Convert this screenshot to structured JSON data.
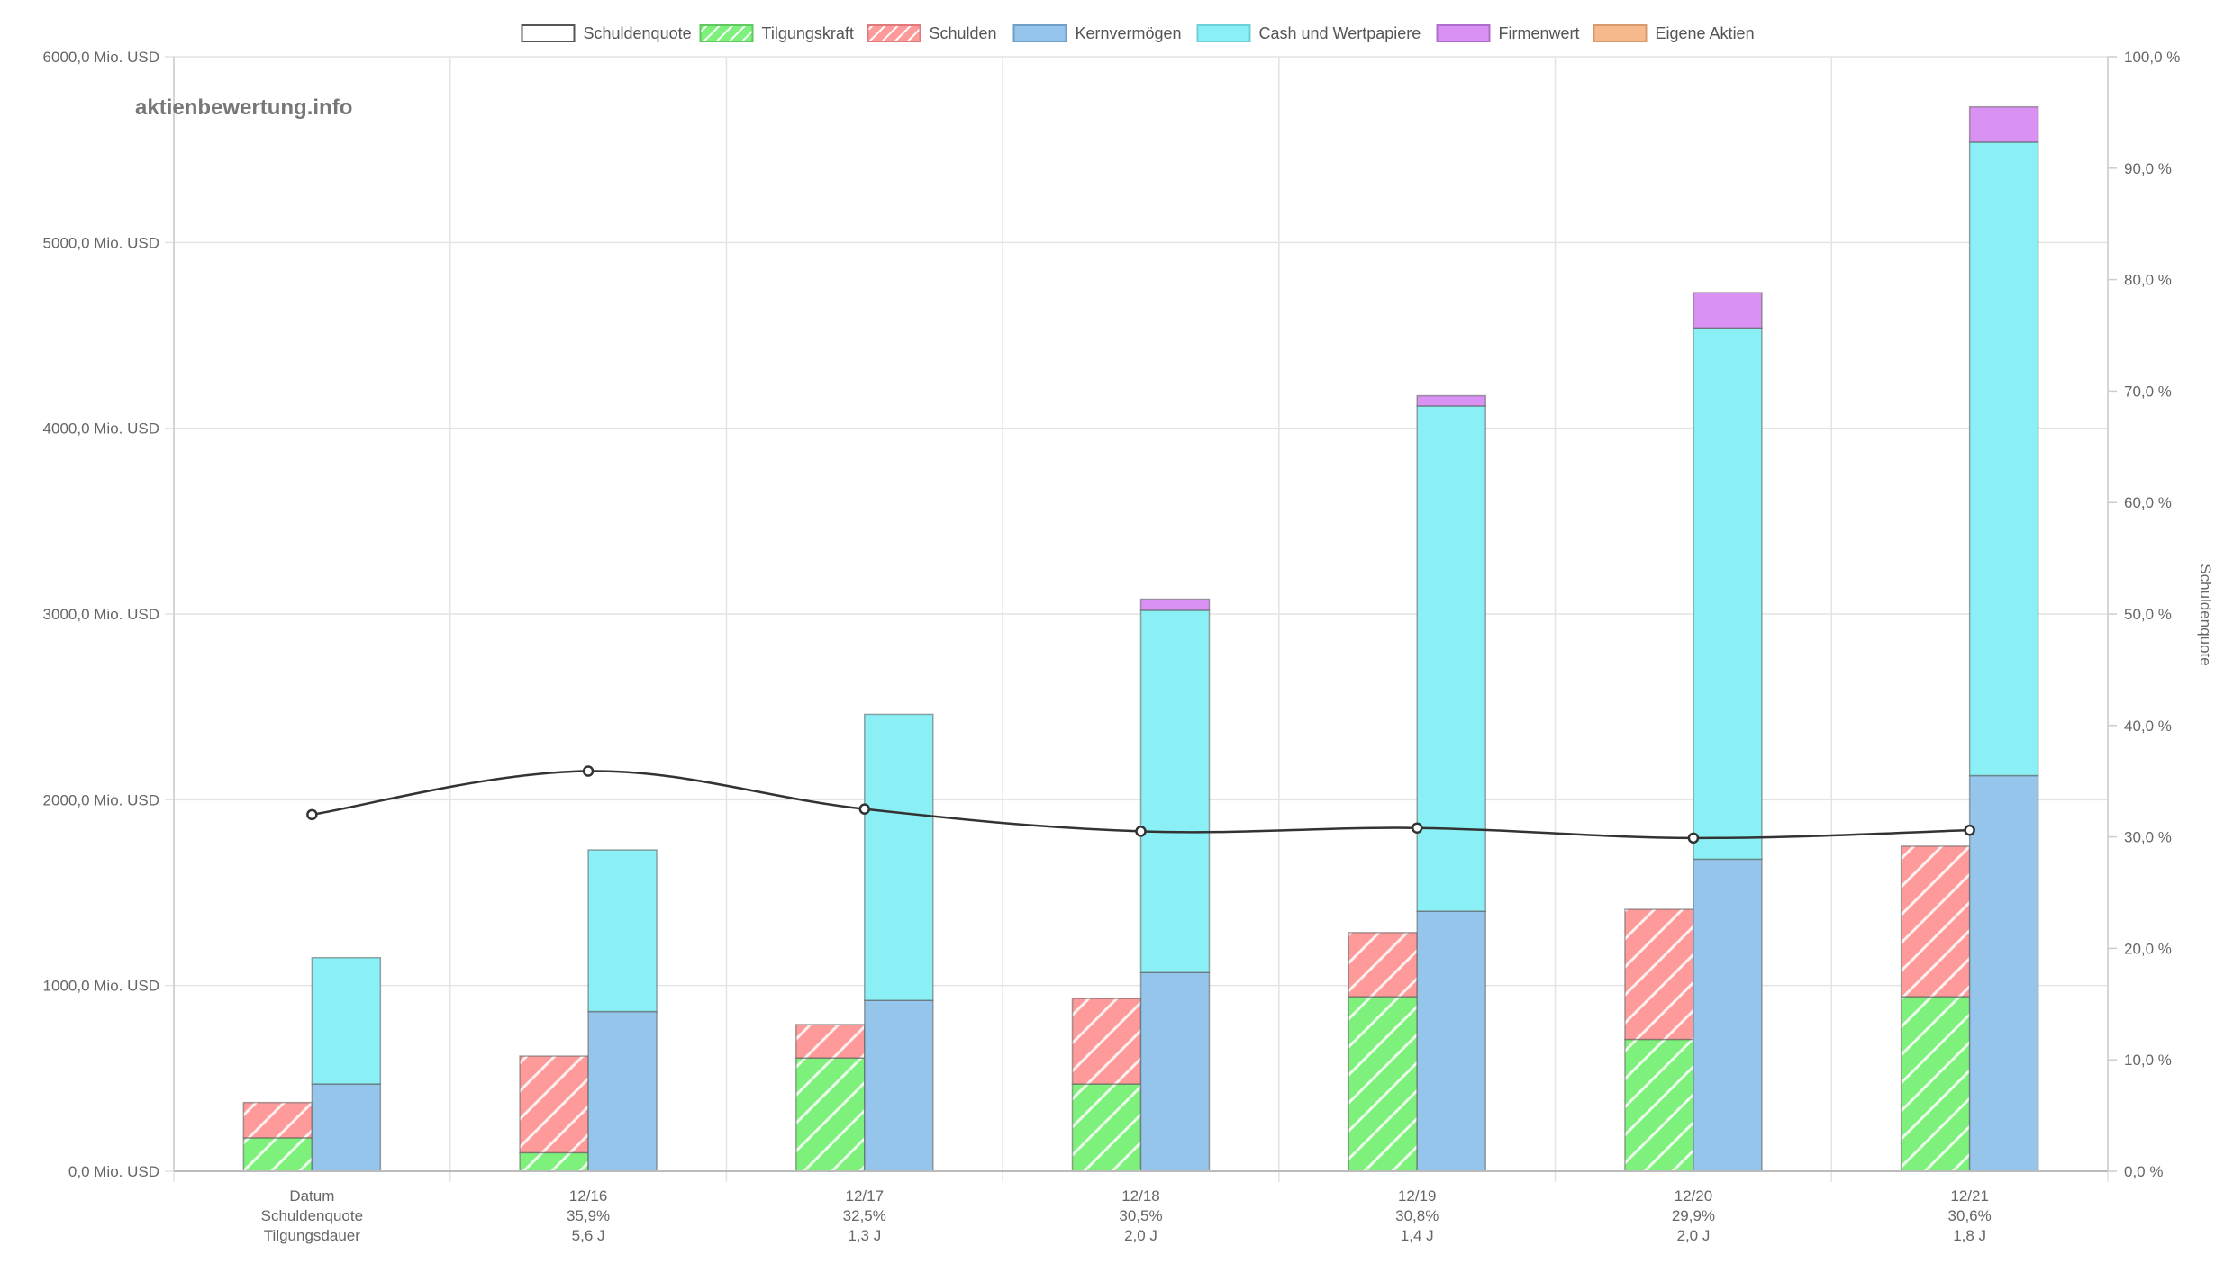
{
  "watermark": "aktienbewertung.info",
  "chart_data": {
    "type": "bar",
    "stacked": true,
    "legend_position": "top-center",
    "grid": true,
    "legend": [
      {
        "label": "Schuldenquote",
        "color": "#ffffff",
        "border": "#555555",
        "pattern": false
      },
      {
        "label": "Tilgungskraft",
        "color": "#7ef07c",
        "border": "#5fc95d",
        "pattern": true
      },
      {
        "label": "Schulden",
        "color": "#ff9a9a",
        "border": "#e07a7a",
        "pattern": true
      },
      {
        "label": "Kernvermögen",
        "color": "#95c5ea",
        "border": "#6f9fc6",
        "pattern": false
      },
      {
        "label": "Cash und Wertpapiere",
        "color": "#8af0f5",
        "border": "#6fcfd6",
        "pattern": false
      },
      {
        "label": "Firmenwert",
        "color": "#d992f3",
        "border": "#b06ecc",
        "pattern": false
      },
      {
        "label": "Eigene Aktien",
        "color": "#f6b98c",
        "border": "#d89a6e",
        "pattern": false
      }
    ],
    "categories": [
      "Datum",
      "12/16",
      "12/17",
      "12/18",
      "12/19",
      "12/20",
      "12/21"
    ],
    "category_lines": [
      [
        "Datum",
        "Schuldenquote",
        "Tilgungsdauer"
      ],
      [
        "12/16",
        "35,9%",
        "5,6 J"
      ],
      [
        "12/17",
        "32,5%",
        "1,3 J"
      ],
      [
        "12/18",
        "30,5%",
        "2,0 J"
      ],
      [
        "12/19",
        "30,8%",
        "1,4 J"
      ],
      [
        "12/20",
        "29,9%",
        "2,0 J"
      ],
      [
        "12/21",
        "30,6%",
        "1,8 J"
      ]
    ],
    "left_stack": {
      "tilgungskraft": [
        180,
        100,
        610,
        470,
        940,
        710,
        940
      ],
      "schulden": [
        190,
        520,
        180,
        460,
        345,
        700,
        810
      ]
    },
    "right_stack": {
      "kernvermoegen": [
        470,
        860,
        920,
        1070,
        1400,
        1680,
        2130
      ],
      "cash": [
        680,
        870,
        1540,
        1950,
        2720,
        2860,
        3410
      ],
      "firmenwert": [
        0,
        0,
        0,
        60,
        55,
        190,
        190
      ],
      "eigene_aktien": [
        0,
        0,
        0,
        0,
        0,
        0,
        0
      ]
    },
    "schuldenquote": [
      32.0,
      35.9,
      32.5,
      30.5,
      30.8,
      29.9,
      30.6
    ],
    "y_left": {
      "min": 0,
      "max": 6000,
      "step": 1000,
      "tick_labels": [
        "0,0 Mio. USD",
        "1000,0 Mio. USD",
        "2000,0 Mio. USD",
        "3000,0 Mio. USD",
        "4000,0 Mio. USD",
        "5000,0 Mio. USD",
        "6000,0 Mio. USD"
      ]
    },
    "y_right": {
      "min": 0,
      "max": 100,
      "step": 10,
      "label": "Schuldenquote",
      "tick_labels": [
        "0,0 %",
        "10,0 %",
        "20,0 %",
        "30,0 %",
        "40,0 %",
        "50,0 %",
        "60,0 %",
        "70,0 %",
        "80,0 %",
        "90,0 %",
        "100,0 %"
      ]
    }
  }
}
